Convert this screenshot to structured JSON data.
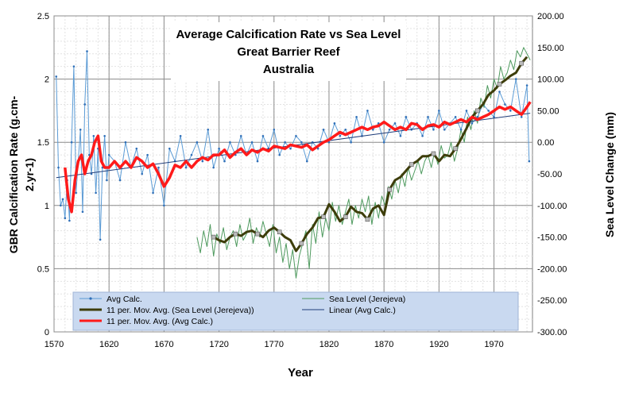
{
  "chart_data": {
    "type": "line",
    "title_lines": [
      "Average Calcification Rate vs Sea Level",
      "Great Barrier Reef",
      "Australia"
    ],
    "xlabel": "Year",
    "ylabel_left_lines": [
      "GBR Calcification Rate (g.cm-",
      "2.yr-1)"
    ],
    "ylabel_right": "Sea Level Change (mm)",
    "x_ticks": [
      "1570",
      "1620",
      "1670",
      "1720",
      "1770",
      "1820",
      "1870",
      "1920",
      "1970"
    ],
    "xlim": [
      1570,
      2005
    ],
    "y_left_ticks": [
      "0",
      "0.5",
      "1",
      "1.5",
      "2",
      "2.5"
    ],
    "ylim_left": [
      0,
      2.5
    ],
    "y_right_ticks": [
      "-300.00",
      "-250.00",
      "-200.00",
      "-150.00",
      "-100.00",
      "-50.00",
      "0.00",
      "50.00",
      "100.00",
      "150.00",
      "200.00"
    ],
    "ylim_right": [
      -300,
      200
    ],
    "grid": true,
    "legend_position": "bottom",
    "legend_entries": [
      {
        "label": "Avg Calc.",
        "color": "#5b9bd5",
        "style": "line-marker"
      },
      {
        "label": "Sea Level (Jerejeva)",
        "color": "#4e9a5e",
        "style": "line"
      },
      {
        "label": "11 per. Mov. Avg. (Sea Level (Jerejeva))",
        "color": "#3d3d0a",
        "style": "thick-line"
      },
      {
        "label": "Linear (Avg Calc.)",
        "color": "#1f3d7a",
        "style": "line"
      },
      {
        "label": "11 per. Mov. Avg. (Avg Calc.)",
        "color": "#ff1a1a",
        "style": "thick-line"
      }
    ],
    "series": [
      {
        "name": "Avg Calc.",
        "axis": "left",
        "color": "#5b9bd5",
        "x": [
          1572,
          1574,
          1576,
          1578,
          1580,
          1582,
          1584,
          1586,
          1588,
          1590,
          1592,
          1594,
          1596,
          1598,
          1600,
          1602,
          1604,
          1606,
          1608,
          1610,
          1612,
          1614,
          1616,
          1618,
          1620,
          1625,
          1630,
          1635,
          1640,
          1645,
          1650,
          1655,
          1660,
          1665,
          1670,
          1675,
          1680,
          1685,
          1690,
          1695,
          1700,
          1705,
          1710,
          1715,
          1720,
          1725,
          1730,
          1735,
          1740,
          1745,
          1750,
          1755,
          1760,
          1765,
          1770,
          1775,
          1780,
          1785,
          1790,
          1795,
          1800,
          1805,
          1810,
          1815,
          1820,
          1825,
          1830,
          1835,
          1840,
          1845,
          1850,
          1855,
          1860,
          1865,
          1870,
          1875,
          1880,
          1885,
          1890,
          1895,
          1900,
          1905,
          1910,
          1915,
          1920,
          1925,
          1930,
          1935,
          1940,
          1945,
          1950,
          1955,
          1960,
          1965,
          1970,
          1975,
          1980,
          1985,
          1990,
          1995,
          2000,
          2002
        ],
        "values": [
          2.02,
          1.3,
          1.0,
          1.05,
          0.9,
          1.2,
          0.88,
          1.5,
          2.1,
          1.1,
          1.35,
          1.6,
          0.95,
          1.8,
          2.22,
          1.4,
          1.25,
          1.55,
          1.1,
          1.45,
          0.73,
          1.3,
          1.55,
          1.2,
          1.4,
          1.35,
          1.2,
          1.5,
          1.3,
          1.45,
          1.25,
          1.4,
          1.1,
          1.3,
          1.0,
          1.45,
          1.35,
          1.55,
          1.3,
          1.4,
          1.5,
          1.35,
          1.6,
          1.3,
          1.45,
          1.35,
          1.5,
          1.4,
          1.55,
          1.4,
          1.5,
          1.35,
          1.55,
          1.45,
          1.6,
          1.4,
          1.5,
          1.45,
          1.55,
          1.5,
          1.35,
          1.5,
          1.45,
          1.6,
          1.5,
          1.65,
          1.55,
          1.6,
          1.5,
          1.7,
          1.55,
          1.75,
          1.6,
          1.65,
          1.5,
          1.6,
          1.65,
          1.55,
          1.7,
          1.6,
          1.65,
          1.55,
          1.7,
          1.6,
          1.75,
          1.6,
          1.65,
          1.7,
          1.6,
          1.75,
          1.65,
          1.7,
          1.8,
          1.75,
          1.7,
          1.9,
          1.8,
          1.75,
          2.0,
          1.7,
          1.95,
          1.35
        ]
      },
      {
        "name": "11 per. Mov. Avg. (Avg Calc.)",
        "axis": "left",
        "color": "#ff1a1a",
        "x": [
          1580,
          1583,
          1586,
          1589,
          1592,
          1595,
          1598,
          1601,
          1604,
          1607,
          1610,
          1613,
          1616,
          1620,
          1625,
          1630,
          1635,
          1640,
          1645,
          1650,
          1655,
          1660,
          1665,
          1670,
          1675,
          1680,
          1685,
          1690,
          1695,
          1700,
          1705,
          1710,
          1715,
          1720,
          1725,
          1730,
          1735,
          1740,
          1745,
          1750,
          1755,
          1760,
          1765,
          1770,
          1775,
          1780,
          1785,
          1790,
          1795,
          1800,
          1805,
          1810,
          1815,
          1820,
          1825,
          1830,
          1835,
          1840,
          1845,
          1850,
          1855,
          1860,
          1865,
          1870,
          1875,
          1880,
          1885,
          1890,
          1895,
          1900,
          1905,
          1910,
          1915,
          1920,
          1925,
          1930,
          1935,
          1940,
          1945,
          1950,
          1955,
          1960,
          1965,
          1970,
          1975,
          1980,
          1985,
          1990,
          1995,
          2000,
          2003
        ],
        "values": [
          1.3,
          1.05,
          0.95,
          1.2,
          1.35,
          1.4,
          1.25,
          1.35,
          1.4,
          1.5,
          1.55,
          1.35,
          1.3,
          1.3,
          1.35,
          1.3,
          1.35,
          1.3,
          1.38,
          1.35,
          1.3,
          1.33,
          1.25,
          1.15,
          1.22,
          1.32,
          1.3,
          1.35,
          1.3,
          1.35,
          1.38,
          1.36,
          1.4,
          1.4,
          1.44,
          1.38,
          1.42,
          1.45,
          1.4,
          1.44,
          1.42,
          1.45,
          1.43,
          1.47,
          1.46,
          1.45,
          1.48,
          1.47,
          1.46,
          1.48,
          1.44,
          1.47,
          1.5,
          1.52,
          1.55,
          1.58,
          1.56,
          1.58,
          1.6,
          1.62,
          1.6,
          1.62,
          1.63,
          1.66,
          1.63,
          1.6,
          1.62,
          1.6,
          1.65,
          1.64,
          1.6,
          1.63,
          1.64,
          1.62,
          1.66,
          1.64,
          1.66,
          1.68,
          1.66,
          1.7,
          1.68,
          1.7,
          1.72,
          1.75,
          1.78,
          1.76,
          1.78,
          1.75,
          1.72,
          1.78,
          1.82
        ]
      },
      {
        "name": "Linear (Avg Calc.)",
        "axis": "left",
        "color": "#1f3d7a",
        "x": [
          1572,
          2003
        ],
        "values": [
          1.22,
          1.73
        ]
      },
      {
        "name": "Sea Level (Jerejeva)",
        "axis": "right",
        "color": "#4e9a5e",
        "x": [
          1700,
          1703,
          1706,
          1709,
          1712,
          1715,
          1718,
          1721,
          1724,
          1727,
          1730,
          1733,
          1736,
          1739,
          1742,
          1745,
          1748,
          1751,
          1754,
          1757,
          1760,
          1763,
          1766,
          1769,
          1772,
          1775,
          1778,
          1781,
          1784,
          1787,
          1790,
          1793,
          1796,
          1799,
          1802,
          1805,
          1808,
          1811,
          1814,
          1817,
          1820,
          1823,
          1826,
          1829,
          1832,
          1835,
          1838,
          1841,
          1844,
          1847,
          1850,
          1853,
          1856,
          1859,
          1862,
          1865,
          1868,
          1871,
          1874,
          1877,
          1880,
          1883,
          1886,
          1889,
          1892,
          1895,
          1898,
          1901,
          1904,
          1907,
          1910,
          1913,
          1916,
          1919,
          1922,
          1925,
          1928,
          1931,
          1934,
          1937,
          1940,
          1943,
          1946,
          1949,
          1952,
          1955,
          1958,
          1961,
          1964,
          1967,
          1970,
          1973,
          1976,
          1979,
          1982,
          1985,
          1988,
          1991,
          1994,
          1997,
          2000,
          2003
        ],
        "values": [
          -150,
          -175,
          -140,
          -165,
          -130,
          -180,
          -145,
          -160,
          -135,
          -170,
          -150,
          -140,
          -165,
          -130,
          -155,
          -145,
          -120,
          -160,
          -135,
          -150,
          -125,
          -145,
          -165,
          -130,
          -175,
          -150,
          -190,
          -160,
          -200,
          -170,
          -215,
          -180,
          -160,
          -140,
          -200,
          -130,
          -160,
          -110,
          -150,
          -120,
          -140,
          -95,
          -125,
          -100,
          -130,
          -110,
          -90,
          -130,
          -100,
          -120,
          -90,
          -110,
          -85,
          -130,
          -95,
          -120,
          -85,
          -100,
          -70,
          -90,
          -60,
          -80,
          -50,
          -70,
          -40,
          -60,
          -45,
          -30,
          -50,
          -30,
          -20,
          -40,
          -15,
          -35,
          -5,
          -25,
          -20,
          0,
          -30,
          -10,
          20,
          0,
          40,
          20,
          50,
          30,
          70,
          55,
          90,
          70,
          100,
          85,
          120,
          100,
          110,
          130,
          115,
          145,
          135,
          150,
          140,
          130
        ]
      },
      {
        "name": "11 per. Mov. Avg. (Sea Level (Jerejeva))",
        "axis": "right",
        "color": "#3d3d0a",
        "x": [
          1715,
          1720,
          1725,
          1730,
          1735,
          1740,
          1745,
          1750,
          1755,
          1760,
          1765,
          1770,
          1775,
          1780,
          1785,
          1790,
          1795,
          1800,
          1805,
          1810,
          1815,
          1820,
          1825,
          1830,
          1835,
          1840,
          1845,
          1850,
          1855,
          1860,
          1865,
          1870,
          1875,
          1880,
          1885,
          1890,
          1895,
          1900,
          1905,
          1910,
          1915,
          1920,
          1925,
          1930,
          1935,
          1940,
          1945,
          1950,
          1955,
          1960,
          1965,
          1970,
          1975,
          1980,
          1985,
          1990,
          1995,
          2000
        ],
        "values": [
          -150,
          -155,
          -158,
          -150,
          -145,
          -148,
          -142,
          -140,
          -145,
          -150,
          -140,
          -135,
          -142,
          -150,
          -155,
          -172,
          -160,
          -145,
          -135,
          -120,
          -118,
          -98,
          -110,
          -125,
          -118,
          -102,
          -110,
          -112,
          -122,
          -105,
          -100,
          -115,
          -75,
          -60,
          -55,
          -45,
          -35,
          -30,
          -22,
          -22,
          -18,
          -30,
          -20,
          -22,
          -10,
          5,
          22,
          40,
          50,
          60,
          75,
          82,
          92,
          98,
          105,
          110,
          125,
          135
        ]
      }
    ]
  }
}
